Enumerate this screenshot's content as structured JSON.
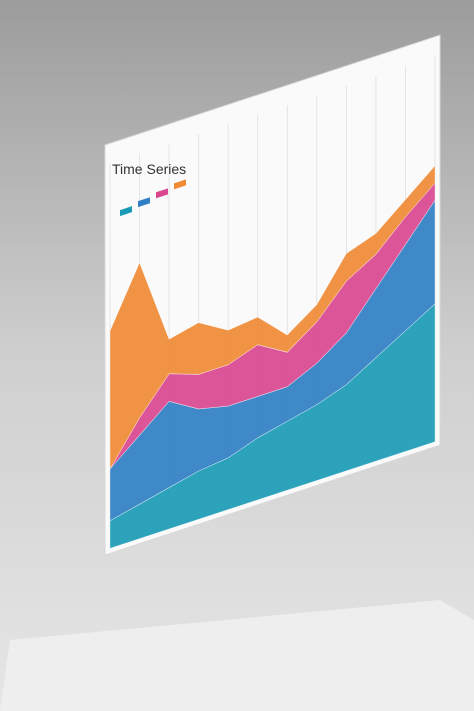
{
  "chart_data": {
    "type": "area",
    "title": "Time Series",
    "categories": [
      null,
      null,
      null,
      null,
      null,
      null,
      null,
      null,
      null,
      null,
      null,
      null
    ],
    "series": [
      {
        "color": "#1a9bb5",
        "values": [
          8,
          10,
          12,
          14,
          15,
          18,
          20,
          22,
          25,
          30,
          35,
          40
        ]
      },
      {
        "color": "#2f7fc4",
        "values": [
          15,
          20,
          25,
          18,
          15,
          12,
          10,
          12,
          15,
          20,
          25,
          30
        ]
      },
      {
        "color": "#d9468f",
        "values": [
          0,
          5,
          8,
          10,
          12,
          15,
          10,
          12,
          15,
          10,
          8,
          5
        ]
      },
      {
        "color": "#f08a34",
        "values": [
          40,
          45,
          10,
          15,
          10,
          8,
          5,
          5,
          8,
          6,
          5,
          5
        ]
      }
    ],
    "ylim": [
      0,
      100
    ]
  }
}
